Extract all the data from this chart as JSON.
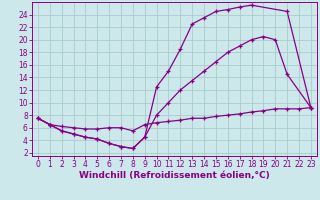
{
  "background_color": "#cce8ea",
  "line_color": "#880088",
  "grid_color": "#aacccc",
  "xlabel": "Windchill (Refroidissement éolien,°C)",
  "xlabel_fontsize": 6.5,
  "tick_fontsize": 5.5,
  "xlim": [
    -0.5,
    23.5
  ],
  "ylim": [
    1.5,
    26
  ],
  "yticks": [
    2,
    4,
    6,
    8,
    10,
    12,
    14,
    16,
    18,
    20,
    22,
    24
  ],
  "xticks": [
    0,
    1,
    2,
    3,
    4,
    5,
    6,
    7,
    8,
    9,
    10,
    11,
    12,
    13,
    14,
    15,
    16,
    17,
    18,
    19,
    20,
    21,
    22,
    23
  ],
  "curve1_x": [
    0,
    1,
    2,
    3,
    4,
    5,
    6,
    7,
    8,
    9,
    10,
    11,
    12,
    13,
    14,
    15,
    16,
    17,
    18,
    21,
    23
  ],
  "curve1_y": [
    7.5,
    6.5,
    5.5,
    5.0,
    4.5,
    4.2,
    3.5,
    3.0,
    2.7,
    4.5,
    12.5,
    15.0,
    18.5,
    22.5,
    23.5,
    24.5,
    24.8,
    25.2,
    25.5,
    24.5,
    9.2
  ],
  "curve2_x": [
    0,
    1,
    2,
    3,
    4,
    5,
    6,
    7,
    8,
    9,
    10,
    11,
    12,
    13,
    14,
    15,
    16,
    17,
    18,
    19,
    20,
    21,
    23
  ],
  "curve2_y": [
    7.5,
    6.5,
    5.5,
    5.0,
    4.5,
    4.2,
    3.5,
    3.0,
    2.7,
    4.5,
    8.0,
    10.0,
    12.0,
    13.5,
    15.0,
    16.5,
    18.0,
    19.0,
    20.0,
    20.5,
    20.0,
    14.5,
    9.2
  ],
  "curve3_x": [
    0,
    1,
    2,
    3,
    4,
    5,
    6,
    7,
    8,
    9,
    10,
    11,
    12,
    13,
    14,
    15,
    16,
    17,
    18,
    19,
    20,
    21,
    22,
    23
  ],
  "curve3_y": [
    7.5,
    6.5,
    6.2,
    6.0,
    5.8,
    5.8,
    6.0,
    6.0,
    5.5,
    6.5,
    6.8,
    7.0,
    7.2,
    7.5,
    7.5,
    7.8,
    8.0,
    8.2,
    8.5,
    8.7,
    9.0,
    9.0,
    9.0,
    9.2
  ]
}
